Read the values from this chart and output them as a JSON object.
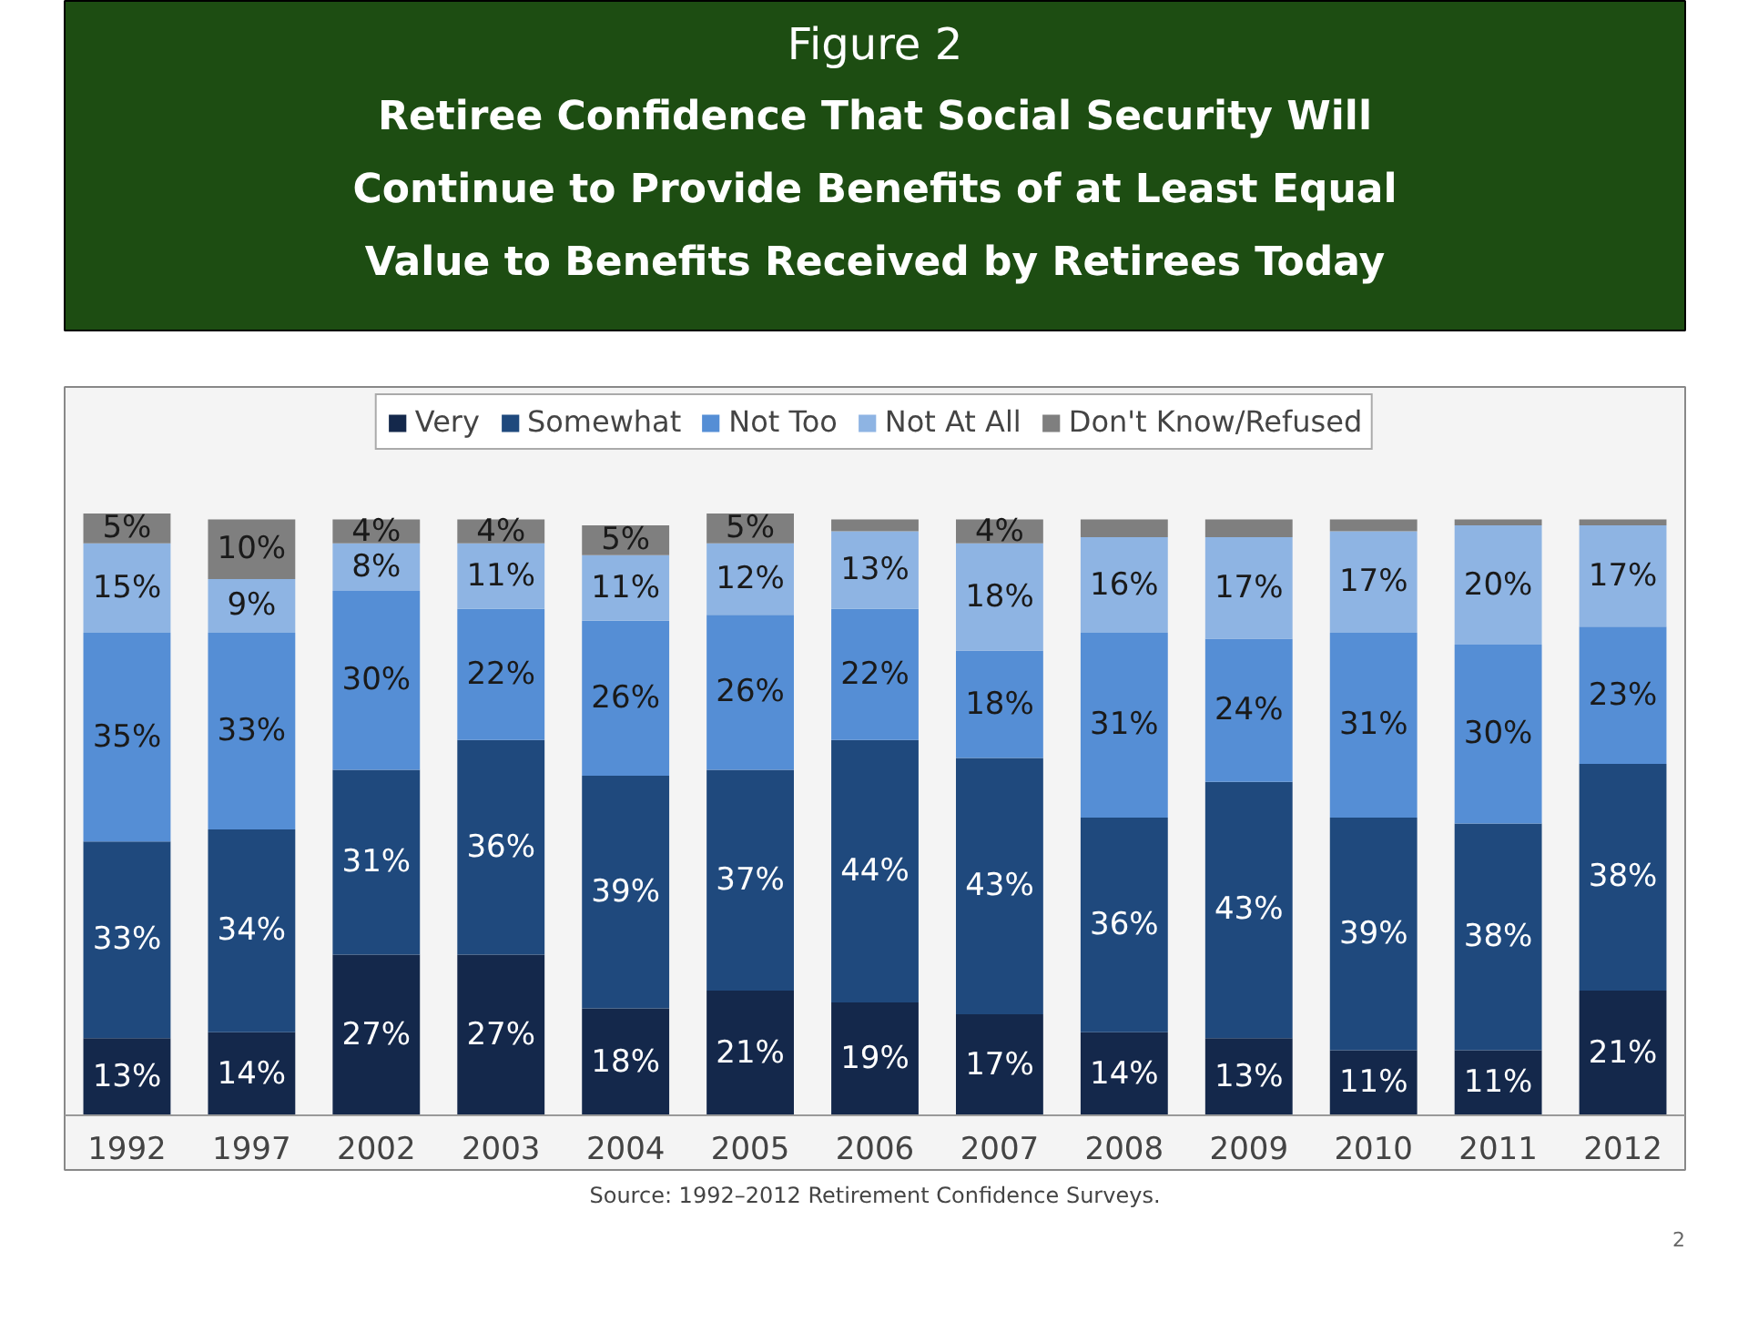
{
  "chart_data": {
    "type": "bar",
    "stacked": true,
    "title": "Figure 2",
    "subtitle": "Retiree Confidence That Social Security Will Continue to Provide Benefits of at Least Equal Value to Benefits Received by Retirees Today",
    "categories": [
      "1992",
      "1997",
      "2002",
      "2003",
      "2004",
      "2005",
      "2006",
      "2007",
      "2008",
      "2009",
      "2010",
      "2011",
      "2012"
    ],
    "series": [
      {
        "name": "Very",
        "color": "#14284b",
        "values": [
          13,
          14,
          27,
          27,
          18,
          21,
          19,
          17,
          14,
          13,
          11,
          11,
          21
        ],
        "value_labels": [
          "13%",
          "14%",
          "27%",
          "27%",
          "18%",
          "21%",
          "19%",
          "17%",
          "14%",
          "13%",
          "11%",
          "11%",
          "21%"
        ]
      },
      {
        "name": "Somewhat",
        "color": "#1f497d",
        "values": [
          33,
          34,
          31,
          36,
          39,
          37,
          44,
          43,
          36,
          43,
          39,
          38,
          38
        ],
        "value_labels": [
          "33%",
          "34%",
          "31%",
          "36%",
          "39%",
          "37%",
          "44%",
          "43%",
          "36%",
          "43%",
          "39%",
          "38%",
          "38%"
        ]
      },
      {
        "name": "Not Too",
        "color": "#558ed5",
        "values": [
          35,
          33,
          30,
          22,
          26,
          26,
          22,
          18,
          31,
          24,
          31,
          30,
          23
        ],
        "value_labels": [
          "35%",
          "33%",
          "30%",
          "22%",
          "26%",
          "26%",
          "22%",
          "18%",
          "31%",
          "24%",
          "31%",
          "30%",
          "23%"
        ]
      },
      {
        "name": "Not At All",
        "color": "#8eb4e3",
        "values": [
          15,
          9,
          8,
          11,
          11,
          12,
          13,
          18,
          16,
          17,
          17,
          20,
          17
        ],
        "value_labels": [
          "15%",
          "9%",
          "8%",
          "11%",
          "11%",
          "12%",
          "13%",
          "18%",
          "16%",
          "17%",
          "17%",
          "20%",
          "17%"
        ]
      },
      {
        "name": "Don't Know/Refused",
        "color": "#7f7f7f",
        "values": [
          5,
          10,
          4,
          4,
          5,
          5,
          2,
          4,
          3,
          3,
          2,
          1,
          1
        ],
        "value_labels": [
          "5%",
          "10%",
          "4%",
          "4%",
          "5%",
          "5%",
          null,
          "4%",
          null,
          null,
          null,
          null,
          null
        ]
      }
    ],
    "legend": "top",
    "grid": false,
    "tick_labels": "x",
    "annotations": [
      "Source: 1992–2012 Retirement Confidence Surveys.",
      "2"
    ]
  }
}
